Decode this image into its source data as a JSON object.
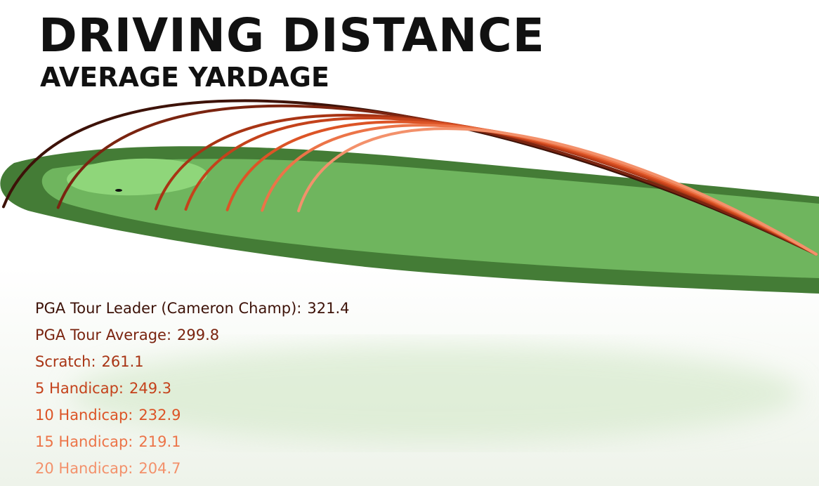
{
  "title": "DRIVING DISTANCE",
  "subtitle": "AVERAGE YARDAGE",
  "chart_data": {
    "type": "bar",
    "title": "DRIVING DISTANCE",
    "subtitle": "AVERAGE YARDAGE",
    "xlabel": "",
    "ylabel": "",
    "grid": false,
    "categories": [
      "PGA Tour Leader (Cameron Champ):",
      "PGA Tour Average:",
      "Scratch:",
      "5 Handicap:",
      "10 Handicap:",
      "15 Handicap:",
      "20 Handicap:"
    ],
    "values": [
      321.4,
      299.8,
      261.1,
      249.3,
      232.9,
      219.1,
      204.7
    ],
    "value_labels": [
      "321.4",
      "299.8",
      "261.1",
      "249.3",
      "232.9",
      "219.1",
      "204.7"
    ],
    "colors": [
      "#3d1208",
      "#7a2410",
      "#a83414",
      "#c4421b",
      "#dc5426",
      "#ec7448",
      "#f3916b"
    ]
  }
}
